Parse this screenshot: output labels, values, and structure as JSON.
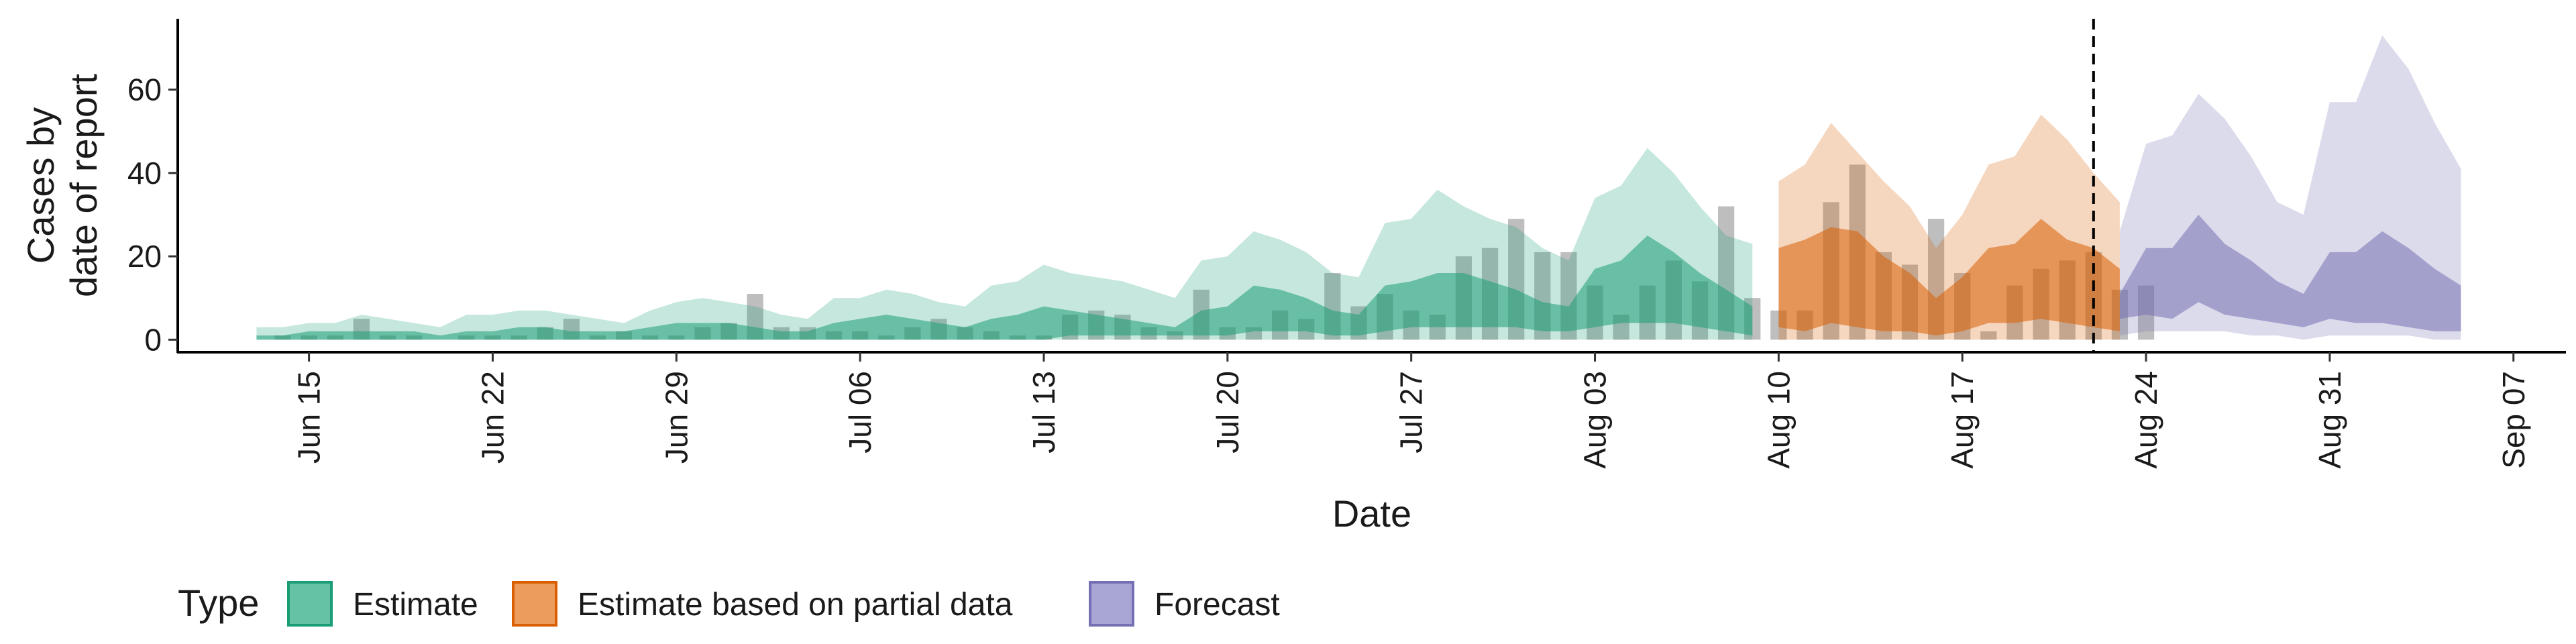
{
  "chart_data": {
    "type": "area",
    "xlabel": "Date",
    "ylabel_lines": [
      "Cases by",
      "date of report"
    ],
    "ylim": [
      -3,
      77
    ],
    "yticks": [
      0,
      20,
      40,
      60
    ],
    "xlim": [
      "2020-06-10",
      "2020-09-09"
    ],
    "xticks": [
      {
        "date": "2020-06-15",
        "label": "Jun 15"
      },
      {
        "date": "2020-06-22",
        "label": "Jun 22"
      },
      {
        "date": "2020-06-29",
        "label": "Jun 29"
      },
      {
        "date": "2020-07-06",
        "label": "Jul 06"
      },
      {
        "date": "2020-07-13",
        "label": "Jul 13"
      },
      {
        "date": "2020-07-20",
        "label": "Jul 20"
      },
      {
        "date": "2020-07-27",
        "label": "Jul 27"
      },
      {
        "date": "2020-08-03",
        "label": "Aug 03"
      },
      {
        "date": "2020-08-10",
        "label": "Aug 10"
      },
      {
        "date": "2020-08-17",
        "label": "Aug 17"
      },
      {
        "date": "2020-08-24",
        "label": "Aug 24"
      },
      {
        "date": "2020-08-31",
        "label": "Aug 31"
      },
      {
        "date": "2020-09-07",
        "label": "Sep 07"
      }
    ],
    "forecast_start_line": "2020-08-22",
    "legend": {
      "title": "Type",
      "placement": "bottom-left",
      "entries": [
        {
          "label": "Estimate",
          "fill": "#66c2a5",
          "border": "#1b9e77"
        },
        {
          "label": "Estimate based on partial data",
          "fill": "#ec9c5c",
          "border": "#d95f02"
        },
        {
          "label": "Forecast",
          "fill": "#a9a6d3",
          "border": "#7570b3"
        }
      ]
    },
    "colors": {
      "Estimate": "#1b9e77",
      "Estimate based on partial data": "#d95f02",
      "Forecast": "#7570b3",
      "bars": "#888888"
    },
    "bars": {
      "start": "2020-06-13",
      "values": [
        0,
        1,
        1,
        1,
        5,
        1,
        1,
        0,
        1,
        1,
        1,
        3,
        5,
        1,
        2,
        1,
        1,
        3,
        4,
        11,
        3,
        3,
        2,
        2,
        1,
        3,
        5,
        3,
        2,
        1,
        1,
        6,
        7,
        6,
        3,
        2,
        12,
        3,
        3,
        7,
        5,
        16,
        8,
        11,
        7,
        6,
        20,
        22,
        29,
        21,
        21,
        13,
        6,
        13,
        19,
        14,
        32,
        10,
        7,
        7,
        33,
        42,
        21,
        18,
        29,
        16,
        2,
        13,
        17,
        19,
        21,
        12,
        13
      ]
    },
    "series": [
      {
        "name": "Estimate",
        "start": "2020-06-13",
        "outer_lower": [
          0,
          0,
          0,
          0,
          0,
          0,
          0,
          0,
          0,
          0,
          0,
          0,
          0,
          0,
          0,
          0,
          0,
          0,
          0,
          0,
          0,
          0,
          0,
          0,
          0,
          0,
          0,
          0,
          0,
          0,
          0,
          0,
          0,
          0,
          0,
          0,
          0,
          0,
          0,
          0,
          0,
          0,
          0,
          0,
          0,
          0,
          0,
          0,
          0,
          0,
          0,
          0,
          0,
          0,
          0,
          0,
          0,
          0,
          0,
          0
        ],
        "outer_upper": [
          3,
          3,
          4,
          4,
          6,
          5,
          4,
          3,
          6,
          6,
          7,
          7,
          6,
          5,
          4,
          7,
          9,
          10,
          9,
          8,
          6,
          5,
          10,
          10,
          12,
          11,
          9,
          8,
          13,
          14,
          18,
          16,
          15,
          14,
          12,
          10,
          19,
          20,
          26,
          24,
          21,
          16,
          15,
          28,
          29,
          36,
          32,
          29,
          27,
          22,
          19,
          34,
          37,
          46,
          40,
          32,
          25,
          23,
          null,
          null
        ],
        "inner_lower": [
          0,
          0,
          0,
          0,
          0,
          0,
          0,
          0,
          0,
          0,
          0,
          0,
          0,
          0,
          0,
          0,
          0,
          0,
          0,
          0,
          0,
          0,
          0,
          0,
          0,
          0,
          0,
          0,
          0,
          0,
          0,
          1,
          1,
          1,
          1,
          1,
          1,
          1,
          2,
          2,
          2,
          1,
          1,
          2,
          3,
          3,
          3,
          3,
          3,
          2,
          2,
          3,
          4,
          4,
          4,
          3,
          2,
          1,
          null,
          null
        ],
        "inner_upper": [
          1,
          1,
          2,
          2,
          2,
          2,
          2,
          1,
          2,
          2,
          3,
          3,
          2,
          2,
          2,
          3,
          4,
          4,
          4,
          3,
          2,
          2,
          4,
          5,
          6,
          5,
          4,
          3,
          5,
          6,
          8,
          7,
          6,
          5,
          4,
          3,
          7,
          8,
          13,
          12,
          10,
          7,
          6,
          13,
          14,
          16,
          16,
          14,
          12,
          9,
          8,
          17,
          19,
          25,
          21,
          16,
          12,
          8,
          null,
          null
        ]
      },
      {
        "name": "Estimate based on partial data",
        "start": "2020-08-10",
        "outer_lower": [
          0,
          0,
          0,
          0,
          0,
          0,
          0,
          0,
          0,
          0,
          0,
          0,
          0,
          0
        ],
        "outer_upper": [
          38,
          42,
          52,
          45,
          38,
          32,
          22,
          30,
          42,
          44,
          54,
          48,
          40,
          33
        ],
        "inner_lower": [
          3,
          2,
          4,
          3,
          2,
          2,
          1,
          2,
          4,
          4,
          5,
          4,
          3,
          2
        ],
        "inner_upper": [
          22,
          24,
          27,
          26,
          20,
          16,
          10,
          15,
          22,
          23,
          29,
          24,
          22,
          17
        ]
      },
      {
        "name": "Forecast",
        "start": "2020-08-23",
        "outer_lower": [
          1,
          2,
          2,
          2,
          2,
          1,
          1,
          0,
          1,
          1,
          1,
          1,
          0,
          0,
          0
        ],
        "outer_upper": [
          26,
          47,
          49,
          59,
          53,
          44,
          33,
          30,
          57,
          57,
          73,
          65,
          52,
          41,
          null
        ],
        "inner_lower": [
          5,
          6,
          5,
          9,
          6,
          5,
          4,
          3,
          5,
          4,
          4,
          3,
          2,
          2,
          null
        ],
        "inner_upper": [
          11,
          22,
          22,
          30,
          23,
          19,
          14,
          11,
          21,
          21,
          26,
          22,
          17,
          13,
          null
        ]
      }
    ]
  }
}
